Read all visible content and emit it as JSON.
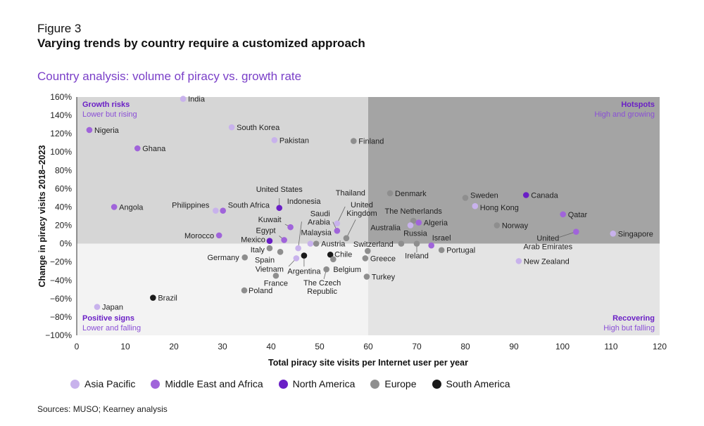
{
  "figure_label": "Figure 3",
  "title": "Varying trends by country require a customized approach",
  "subtitle": "Country analysis: volume of piracy vs. growth rate",
  "source": "Sources: MUSO; Kearney analysis",
  "colors": {
    "Asia Pacific": "#c8b2ec",
    "Middle East and Africa": "#a064da",
    "North America": "#6a1fc6",
    "Europe": "#8e8e8e",
    "South America": "#1a1a1a",
    "quadrant_top_left": "#d6d6d6",
    "quadrant_top_right": "#a4a4a4",
    "quadrant_bottom_left": "#f3f3f3",
    "quadrant_bottom_right": "#e4e4e4",
    "accent": "#7a3fc8"
  },
  "quadrants": {
    "top_left": {
      "title": "Growth risks",
      "subtitle": "Lower but rising"
    },
    "top_right": {
      "title": "Hotspots",
      "subtitle": "High and growing"
    },
    "bottom_left": {
      "title": "Positive signs",
      "subtitle": "Lower and falling"
    },
    "bottom_right": {
      "title": "Recovering",
      "subtitle": "High but falling"
    }
  },
  "chart_data": {
    "type": "scatter",
    "xlabel": "Total piracy site visits per Internet user per year",
    "ylabel": "Change in piracy visits 2018–2023",
    "xlim": [
      0,
      120
    ],
    "ylim": [
      -100,
      160
    ],
    "x_ticks": [
      "0",
      "10",
      "20",
      "30",
      "40",
      "50",
      "60",
      "70",
      "80",
      "90",
      "100",
      "110",
      "120"
    ],
    "y_ticks": [
      "160%",
      "140%",
      "120%",
      "100%",
      "80%",
      "60%",
      "40%",
      "20%",
      "0%",
      "−20%",
      "−40%",
      "−60%",
      "−80%",
      "−100%"
    ],
    "quadrant_split": {
      "x": 60,
      "y": 0
    },
    "legend_position": "bottom",
    "legend": [
      "Asia Pacific",
      "Middle East and Africa",
      "North America",
      "Europe",
      "South America"
    ],
    "points": [
      {
        "label": "India",
        "region": "Asia Pacific",
        "x": 21.9,
        "y": 158
      },
      {
        "label": "Nigeria",
        "region": "Middle East and Africa",
        "x": 2.6,
        "y": 124
      },
      {
        "label": "Ghana",
        "region": "Middle East and Africa",
        "x": 12.5,
        "y": 104
      },
      {
        "label": "South Korea",
        "region": "Asia Pacific",
        "x": 31.9,
        "y": 127
      },
      {
        "label": "Pakistan",
        "region": "Asia Pacific",
        "x": 40.7,
        "y": 113
      },
      {
        "label": "Finland",
        "region": "Europe",
        "x": 57,
        "y": 112
      },
      {
        "label": "Angola",
        "region": "Middle East and Africa",
        "x": 7.7,
        "y": 40
      },
      {
        "label": "Philippines",
        "region": "Asia Pacific",
        "x": 28.6,
        "y": 36
      },
      {
        "label": "South Africa",
        "region": "Middle East and Africa",
        "x": 30.1,
        "y": 36
      },
      {
        "label": "United States",
        "region": "North America",
        "x": 41.7,
        "y": 39
      },
      {
        "label": "Kuwait",
        "region": "Middle East and Africa",
        "x": 44,
        "y": 18
      },
      {
        "label": "Egypt",
        "region": "Middle East and Africa",
        "x": 42.7,
        "y": 4
      },
      {
        "label": "Mexico",
        "region": "North America",
        "x": 39.7,
        "y": 3
      },
      {
        "label": "Morocco",
        "region": "Middle East and Africa",
        "x": 29.3,
        "y": 9
      },
      {
        "label": "Italy",
        "region": "Europe",
        "x": 39.7,
        "y": -5
      },
      {
        "label": "Spain",
        "region": "Europe",
        "x": 41.9,
        "y": -9
      },
      {
        "label": "Germany",
        "region": "Europe",
        "x": 34.6,
        "y": -15
      },
      {
        "label": "Vietnam",
        "region": "Asia Pacific",
        "x": 45.2,
        "y": -16
      },
      {
        "label": "Indonesia",
        "region": "Asia Pacific",
        "x": 45.6,
        "y": -5
      },
      {
        "label": "Argentina",
        "region": "South America",
        "x": 46.8,
        "y": -13
      },
      {
        "label": "France",
        "region": "Europe",
        "x": 41,
        "y": -35
      },
      {
        "label": "Poland",
        "region": "Europe",
        "x": 34.5,
        "y": -51
      },
      {
        "label": "Malaysia",
        "region": "Asia Pacific",
        "x": 48.1,
        "y": 0
      },
      {
        "label": "Austria",
        "region": "Europe",
        "x": 49.3,
        "y": 0
      },
      {
        "label": "Saudi Arabia",
        "region": "Middle East and Africa",
        "x": 53.6,
        "y": 14
      },
      {
        "label": "Thailand",
        "region": "Asia Pacific",
        "x": 53.6,
        "y": 22
      },
      {
        "label": "United Kingdom",
        "region": "Europe",
        "x": 55.5,
        "y": 6
      },
      {
        "label": "Chile",
        "region": "South America",
        "x": 52.2,
        "y": -12
      },
      {
        "label": "Belgium",
        "region": "Europe",
        "x": 52.8,
        "y": -17
      },
      {
        "label": "The Czech Republic",
        "region": "Europe",
        "x": 51.4,
        "y": -28
      },
      {
        "label": "Switzerland",
        "region": "Europe",
        "x": 59.9,
        "y": -8
      },
      {
        "label": "Greece",
        "region": "Europe",
        "x": 59.4,
        "y": -16
      },
      {
        "label": "Turkey",
        "region": "Europe",
        "x": 59.7,
        "y": -36
      },
      {
        "label": "Denmark",
        "region": "Europe",
        "x": 64.5,
        "y": 55
      },
      {
        "label": "The Netherlands",
        "region": "Europe",
        "x": 69.3,
        "y": 25
      },
      {
        "label": "Australia",
        "region": "Asia Pacific",
        "x": 68.7,
        "y": 20
      },
      {
        "label": "Algeria",
        "region": "Middle East and Africa",
        "x": 70.4,
        "y": 23
      },
      {
        "label": "Russia",
        "region": "Europe",
        "x": 66.8,
        "y": 0
      },
      {
        "label": "Ireland",
        "region": "Europe",
        "x": 70,
        "y": 0
      },
      {
        "label": "Israel",
        "region": "Middle East and Africa",
        "x": 73,
        "y": -2
      },
      {
        "label": "Portugal",
        "region": "Europe",
        "x": 75.1,
        "y": -7
      },
      {
        "label": "Sweden",
        "region": "Europe",
        "x": 80,
        "y": 50
      },
      {
        "label": "Hong Kong",
        "region": "Asia Pacific",
        "x": 82,
        "y": 41
      },
      {
        "label": "Norway",
        "region": "Europe",
        "x": 86.5,
        "y": 20
      },
      {
        "label": "Canada",
        "region": "North America",
        "x": 92.5,
        "y": 53
      },
      {
        "label": "Qatar",
        "region": "Middle East and Africa",
        "x": 100.1,
        "y": 32
      },
      {
        "label": "United Arab Emirates",
        "region": "Middle East and Africa",
        "x": 102.8,
        "y": 13
      },
      {
        "label": "Singapore",
        "region": "Asia Pacific",
        "x": 110.4,
        "y": 11
      },
      {
        "label": "New Zealand",
        "region": "Asia Pacific",
        "x": 91,
        "y": -19
      },
      {
        "label": "Japan",
        "region": "Asia Pacific",
        "x": 4.2,
        "y": -69
      },
      {
        "label": "Brazil",
        "region": "South America",
        "x": 15.7,
        "y": -59
      }
    ]
  }
}
